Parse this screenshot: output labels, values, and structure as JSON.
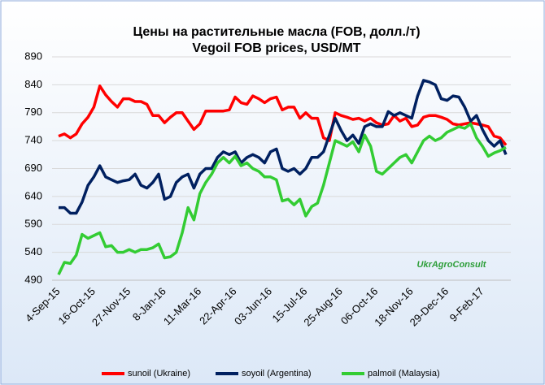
{
  "chart_data": {
    "type": "line",
    "title": "Цены на растительные масла  (FOB, долл./т)",
    "subtitle": "Vegoil FOB prices, USD/MT",
    "brand": "UkrAgroConsult",
    "categories": [
      "4-Sep-15",
      null,
      null,
      null,
      null,
      null,
      "16-Oct-15",
      null,
      null,
      null,
      null,
      null,
      "27-Nov-15",
      null,
      null,
      null,
      null,
      null,
      "8-Jan-16",
      null,
      null,
      null,
      null,
      null,
      "11-Mar-16",
      null,
      null,
      null,
      null,
      null,
      "22-Apr-16",
      null,
      null,
      null,
      null,
      null,
      "03-Jun-16",
      null,
      null,
      null,
      null,
      null,
      "15-Jul-16",
      null,
      null,
      null,
      null,
      null,
      "25-Aug-16",
      null,
      null,
      null,
      null,
      null,
      "06-Oct-16",
      null,
      null,
      null,
      null,
      null,
      "18-Nov-16",
      null,
      null,
      null,
      null,
      null,
      "29-Dec-16",
      null,
      null,
      null,
      null,
      null,
      "9-Feb-17",
      null,
      null,
      null,
      null
    ],
    "series": [
      {
        "name": "sunoil (Ukraine)",
        "color": "#ff0000",
        "values": [
          748,
          752,
          745,
          752,
          770,
          782,
          800,
          838,
          822,
          810,
          800,
          815,
          815,
          810,
          810,
          805,
          785,
          785,
          772,
          782,
          790,
          790,
          775,
          760,
          770,
          793,
          793,
          793,
          793,
          795,
          818,
          808,
          805,
          820,
          815,
          808,
          815,
          818,
          795,
          800,
          800,
          780,
          790,
          780,
          780,
          745,
          740,
          790,
          785,
          782,
          778,
          780,
          775,
          780,
          772,
          768,
          770,
          785,
          775,
          780,
          765,
          768,
          782,
          785,
          785,
          782,
          778,
          770,
          768,
          770,
          772,
          770,
          768,
          765,
          748,
          745,
          732
        ]
      },
      {
        "name": "soyoil (Argentina)",
        "color": "#002060",
        "values": [
          620,
          620,
          610,
          610,
          630,
          660,
          675,
          695,
          675,
          670,
          665,
          668,
          670,
          680,
          660,
          655,
          665,
          680,
          635,
          640,
          665,
          675,
          680,
          655,
          680,
          690,
          690,
          710,
          720,
          715,
          720,
          700,
          710,
          715,
          710,
          700,
          720,
          725,
          690,
          685,
          690,
          680,
          690,
          710,
          710,
          720,
          750,
          780,
          758,
          740,
          750,
          735,
          765,
          770,
          765,
          765,
          792,
          785,
          790,
          785,
          780,
          820,
          848,
          845,
          840,
          815,
          812,
          820,
          818,
          800,
          775,
          785,
          760,
          740,
          730,
          740,
          715
        ]
      },
      {
        "name": "palmoil (Malaysia)",
        "color": "#33cc33",
        "values": [
          500,
          522,
          520,
          535,
          572,
          565,
          570,
          575,
          550,
          552,
          540,
          540,
          545,
          540,
          545,
          545,
          548,
          555,
          530,
          532,
          540,
          575,
          620,
          598,
          645,
          665,
          680,
          700,
          710,
          700,
          712,
          695,
          700,
          690,
          685,
          675,
          675,
          670,
          632,
          635,
          625,
          635,
          605,
          622,
          628,
          660,
          700,
          740,
          735,
          730,
          738,
          720,
          750,
          730,
          685,
          680,
          690,
          700,
          710,
          715,
          700,
          720,
          740,
          748,
          740,
          745,
          755,
          760,
          765,
          762,
          770,
          745,
          730,
          712,
          718,
          722,
          728
        ]
      }
    ],
    "ylim": [
      490,
      890
    ],
    "yticks": [
      490,
      540,
      590,
      640,
      690,
      740,
      790,
      840,
      890
    ],
    "grid": true,
    "legend": "bottom"
  }
}
